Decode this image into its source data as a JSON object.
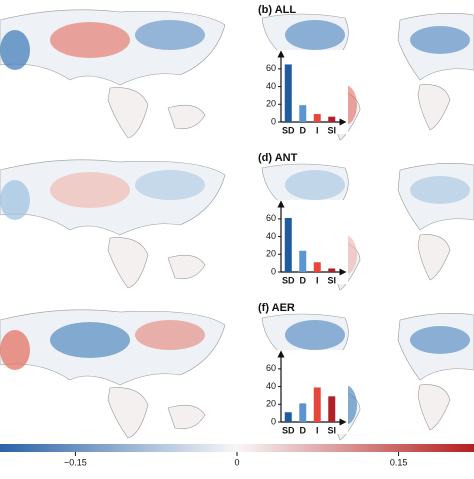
{
  "chart_data": [
    {
      "type": "bar",
      "title": "(b) ALL",
      "categories": [
        "SD",
        "D",
        "I",
        "SI"
      ],
      "values": [
        65,
        19,
        9,
        6
      ],
      "colors": [
        "#1f5c9e",
        "#5b96d0",
        "#e8453c",
        "#b0202a"
      ],
      "ylim": [
        0,
        70
      ],
      "yticks": [
        0,
        20,
        40,
        60
      ]
    },
    {
      "type": "bar",
      "title": "(d) ANT",
      "categories": [
        "SD",
        "D",
        "I",
        "SI"
      ],
      "values": [
        61,
        24,
        11,
        4
      ],
      "colors": [
        "#1f5c9e",
        "#5b96d0",
        "#e8453c",
        "#b0202a"
      ],
      "ylim": [
        0,
        70
      ],
      "yticks": [
        0,
        20,
        40,
        60
      ]
    },
    {
      "type": "bar",
      "title": "(f) AER",
      "categories": [
        "SD",
        "D",
        "I",
        "SI"
      ],
      "values": [
        11,
        21,
        39,
        29
      ],
      "colors": [
        "#1f5c9e",
        "#5b96d0",
        "#e8453c",
        "#b0202a"
      ],
      "ylim": [
        0,
        70
      ],
      "yticks": [
        0,
        20,
        40,
        60
      ]
    },
    {
      "type": "colorbar",
      "colors": [
        "#2a63a8",
        "#f7f7f7",
        "#b51f1f"
      ],
      "xlim": [
        -0.22,
        0.22
      ],
      "xticks": [
        {
          "value": -0.15,
          "label": "−0.15"
        },
        0,
        0.15
      ]
    }
  ]
}
